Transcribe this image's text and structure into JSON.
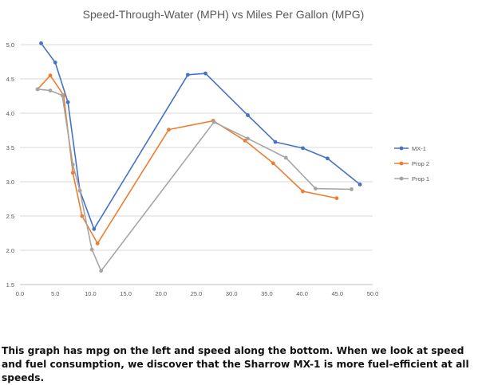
{
  "chart_data": {
    "type": "line",
    "title": "Speed-Through-Water (MPH) vs Miles Per Gallon (MPG)",
    "xlabel": "",
    "ylabel": "",
    "xlim": [
      0,
      50
    ],
    "ylim": [
      1.5,
      5.0
    ],
    "x_ticks": [
      "0.0",
      "5.0",
      "10.0",
      "15.0",
      "20.0",
      "25.0",
      "30.0",
      "35.0",
      "40.0",
      "45.0",
      "50.0"
    ],
    "y_ticks": [
      "1.5",
      "2.0",
      "2.5",
      "3.0",
      "3.5",
      "4.0",
      "4.5",
      "5.0"
    ],
    "grid": "horizontal",
    "legend_position": "right",
    "series": [
      {
        "name": "MX-1",
        "color": "#4472C4",
        "points": [
          [
            3.0,
            5.02
          ],
          [
            5.0,
            4.74
          ],
          [
            6.8,
            4.16
          ],
          [
            8.5,
            2.87
          ],
          [
            10.5,
            2.31
          ],
          [
            23.8,
            4.56
          ],
          [
            26.3,
            4.58
          ],
          [
            32.3,
            3.97
          ],
          [
            36.2,
            3.58
          ],
          [
            40.1,
            3.49
          ],
          [
            43.6,
            3.34
          ],
          [
            48.2,
            2.96
          ]
        ]
      },
      {
        "name": "Prop 2",
        "color": "#ED7D31",
        "points": [
          [
            2.5,
            4.35
          ],
          [
            4.3,
            4.55
          ],
          [
            6.2,
            4.26
          ],
          [
            7.5,
            3.13
          ],
          [
            8.8,
            2.5
          ],
          [
            11.0,
            2.1
          ],
          [
            21.1,
            3.76
          ],
          [
            27.4,
            3.89
          ],
          [
            31.9,
            3.6
          ],
          [
            35.9,
            3.27
          ],
          [
            40.1,
            2.86
          ],
          [
            44.9,
            2.76
          ]
        ]
      },
      {
        "name": "Prop 1",
        "color": "#A5A5A5",
        "points": [
          [
            2.5,
            4.35
          ],
          [
            4.3,
            4.33
          ],
          [
            6.0,
            4.26
          ],
          [
            7.5,
            3.25
          ],
          [
            8.5,
            2.87
          ],
          [
            10.2,
            2.01
          ],
          [
            11.5,
            1.7
          ],
          [
            27.5,
            3.87
          ],
          [
            32.3,
            3.63
          ],
          [
            37.7,
            3.35
          ],
          [
            41.9,
            2.9
          ],
          [
            47.0,
            2.89
          ]
        ]
      }
    ]
  },
  "caption": "This graph has mpg on the left and speed along the bottom. When we look at speed and fuel consumption, we discover that the Sharrow MX-1 is more fuel-efficient at all speeds."
}
